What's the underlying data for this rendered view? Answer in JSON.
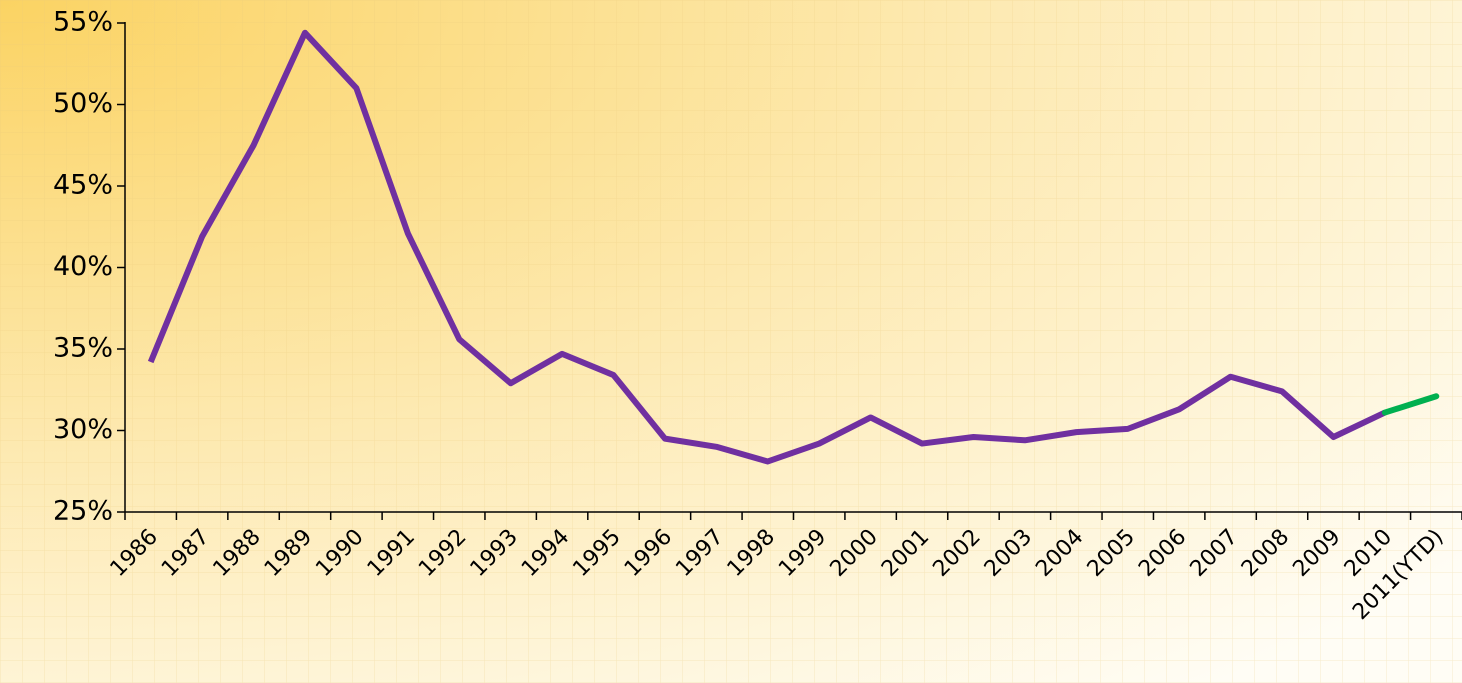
{
  "chart_data": {
    "type": "line",
    "categories": [
      "1986",
      "1987",
      "1988",
      "1989",
      "1990",
      "1991",
      "1992",
      "1993",
      "1994",
      "1995",
      "1996",
      "1997",
      "1998",
      "1999",
      "2000",
      "2001",
      "2002",
      "2003",
      "2004",
      "2005",
      "2006",
      "2007",
      "2008",
      "2009",
      "2010",
      "2011(YTD)"
    ],
    "values": [
      34.2,
      41.9,
      47.5,
      54.4,
      51.0,
      42.1,
      35.6,
      32.9,
      34.7,
      33.4,
      29.5,
      29.0,
      28.1,
      29.2,
      30.8,
      29.2,
      29.6,
      29.4,
      29.9,
      30.1,
      31.3,
      33.3,
      32.4,
      29.6,
      31.1,
      32.1
    ],
    "color": "#7030a0",
    "last_segment_color": "#00b050",
    "ylim": [
      25,
      55
    ],
    "yticks": [
      {
        "value": 25,
        "label": "25%"
      },
      {
        "value": 30,
        "label": "30%"
      },
      {
        "value": 35,
        "label": "35%"
      },
      {
        "value": 40,
        "label": "40%"
      },
      {
        "value": 45,
        "label": "45%"
      },
      {
        "value": 50,
        "label": "50%"
      },
      {
        "value": 55,
        "label": "55%"
      }
    ]
  }
}
